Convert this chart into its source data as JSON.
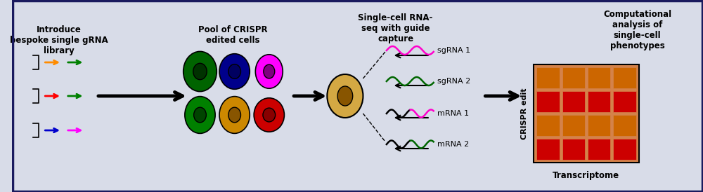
{
  "bg_color": "#d8dce8",
  "border_color": "#1a1a5e",
  "title_color": "#000000",
  "arrow_color": "#000000",
  "step1_title": "Introduce\nbespoke single gRNA\nlibrary",
  "step2_title": "Pool of CRISPR\nedited cells",
  "step3_title": "Single-cell RNA-\nseq with guide\ncapture",
  "step4_title": "Computational\nanalysis of\nsingle-cell\nphenotypes",
  "arrow_colors": [
    "#ff8c00",
    "#008000",
    "#ff0000",
    "#0000cc",
    "#ff00ff"
  ],
  "cell_outer_colors": [
    "#006400",
    "#00008b",
    "#ff00ff",
    "#008000",
    "#cc8800",
    "#cc0000"
  ],
  "cell_inner_colors": [
    "#003200",
    "#000060",
    "#800080",
    "#004400",
    "#885500",
    "#880000"
  ],
  "sgrna1_color": "#ff00cc",
  "sgrna2_color": "#006600",
  "mrna1_color": "#ff00cc",
  "mrna2_color": "#006600",
  "grid_row_colors": [
    "#cc0000",
    "#cc6600",
    "#cc0000",
    "#cc6600"
  ],
  "grid_bg": "#cc6600",
  "grid_border": "#000000",
  "transcriptome_label": "Transcriptome",
  "crispr_label": "CRISPR edit",
  "sgrna1_label": "sgRNA 1",
  "sgrna2_label": "sgRNA 2",
  "mrna1_label": "mRNA 1",
  "mrna2_label": "mRNA 2"
}
